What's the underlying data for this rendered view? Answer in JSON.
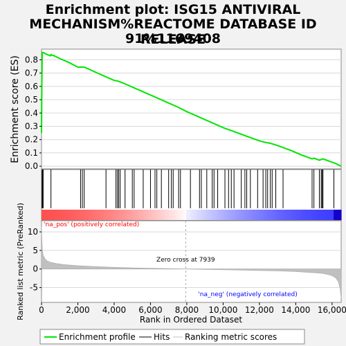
{
  "title_lines": [
    "Enrichment plot: ISG15 ANTIVIRAL",
    "MECHANISM%REACTOME DATABASE ID RELEASE",
    "91%1169408"
  ],
  "legend": {
    "profile": "Enrichment profile",
    "hits": "Hits",
    "metric": "Ranking metric scores"
  },
  "colors": {
    "profile": "#00e600",
    "hits": "#000000",
    "metric": "#c0c0c0",
    "pos": "#ff0000",
    "neg": "#0000ff"
  },
  "chart_data": {
    "type": "line",
    "xlabel": "Rank in Ordered Dataset",
    "ylabel_es": "Enrichment score (ES)",
    "ylabel_metric": "Ranked list metric (PreRanked)",
    "xlim": [
      0,
      16500
    ],
    "x_ticks": [
      0,
      2000,
      4000,
      6000,
      8000,
      10000,
      12000,
      14000,
      16000
    ],
    "x_tick_labels": [
      "0",
      "2,000",
      "4,000",
      "6,000",
      "8,000",
      "10,000",
      "12,000",
      "14,000",
      "16,000"
    ],
    "es_ylim": [
      -0.02,
      0.88
    ],
    "es_ticks": [
      0.0,
      0.1,
      0.2,
      0.3,
      0.4,
      0.5,
      0.6,
      0.7,
      0.8
    ],
    "es_tick_labels": [
      "0.0",
      "0.1",
      "0.2",
      "0.3",
      "0.4",
      "0.5",
      "0.6",
      "0.7",
      "0.8"
    ],
    "metric_ylim": [
      -9,
      13
    ],
    "metric_ticks": [
      10,
      5,
      0,
      -5
    ],
    "metric_tick_labels": [
      "10",
      "5",
      "0",
      "-5"
    ],
    "zero_cross": 7939,
    "zero_cross_label": "Zero cross at 7939",
    "pos_label": "'na_pos' (positively correlated)",
    "neg_label": "'na_neg' (negatively correlated)",
    "es_profile": {
      "x": [
        0,
        20,
        40,
        60,
        80,
        300,
        480,
        520,
        560,
        700,
        1000,
        1500,
        2000,
        2150,
        2350,
        2600,
        3000,
        3500,
        4000,
        4200,
        4500,
        5000,
        5500,
        6000,
        6500,
        7000,
        7500,
        8000,
        8500,
        9000,
        9500,
        10000,
        10500,
        11000,
        11500,
        12000,
        12300,
        12600,
        12900,
        13300,
        13800,
        14300,
        14900,
        15000,
        15300,
        15500,
        15700,
        16000,
        16200,
        16500
      ],
      "y": [
        0.25,
        0.62,
        0.85,
        0.855,
        0.855,
        0.84,
        0.83,
        0.84,
        0.835,
        0.83,
        0.81,
        0.78,
        0.745,
        0.745,
        0.745,
        0.73,
        0.705,
        0.675,
        0.645,
        0.64,
        0.625,
        0.595,
        0.565,
        0.535,
        0.505,
        0.475,
        0.445,
        0.41,
        0.38,
        0.35,
        0.32,
        0.29,
        0.265,
        0.24,
        0.215,
        0.19,
        0.18,
        0.172,
        0.16,
        0.14,
        0.115,
        0.085,
        0.055,
        0.06,
        0.045,
        0.055,
        0.045,
        0.03,
        0.02,
        0.0
      ]
    },
    "hits": [
      30,
      60,
      90,
      520,
      2150,
      2250,
      2350,
      3550,
      4100,
      4180,
      4250,
      4330,
      4600,
      5000,
      5100,
      5600,
      6000,
      6250,
      6350,
      6600,
      7000,
      7150,
      7250,
      7550,
      7650,
      8200,
      8700,
      8800,
      9100,
      9400,
      9500,
      9700,
      10100,
      10300,
      10450,
      10600,
      11000,
      11200,
      11300,
      11500,
      11900,
      12200,
      12350,
      12450,
      12600,
      12700,
      12900,
      13300,
      14900,
      15000,
      15300,
      15400,
      15450,
      15500,
      16100
    ],
    "metric": {
      "x": [
        0,
        20,
        50,
        100,
        200,
        300,
        500,
        800,
        1200,
        2000,
        3000,
        4000,
        5000,
        6000,
        7000,
        7939,
        9000,
        10000,
        11000,
        12000,
        13000,
        14000,
        14500,
        15000,
        15500,
        15800,
        16000,
        16200,
        16350,
        16450,
        16500
      ],
      "y": [
        11.5,
        8,
        5,
        3.6,
        2.7,
        2.2,
        1.8,
        1.5,
        1.2,
        0.9,
        0.65,
        0.45,
        0.3,
        0.2,
        0.1,
        0,
        -0.1,
        -0.2,
        -0.3,
        -0.4,
        -0.5,
        -0.7,
        -0.85,
        -1.0,
        -1.2,
        -1.5,
        -1.8,
        -2.4,
        -3.5,
        -5.5,
        -8
      ]
    }
  }
}
